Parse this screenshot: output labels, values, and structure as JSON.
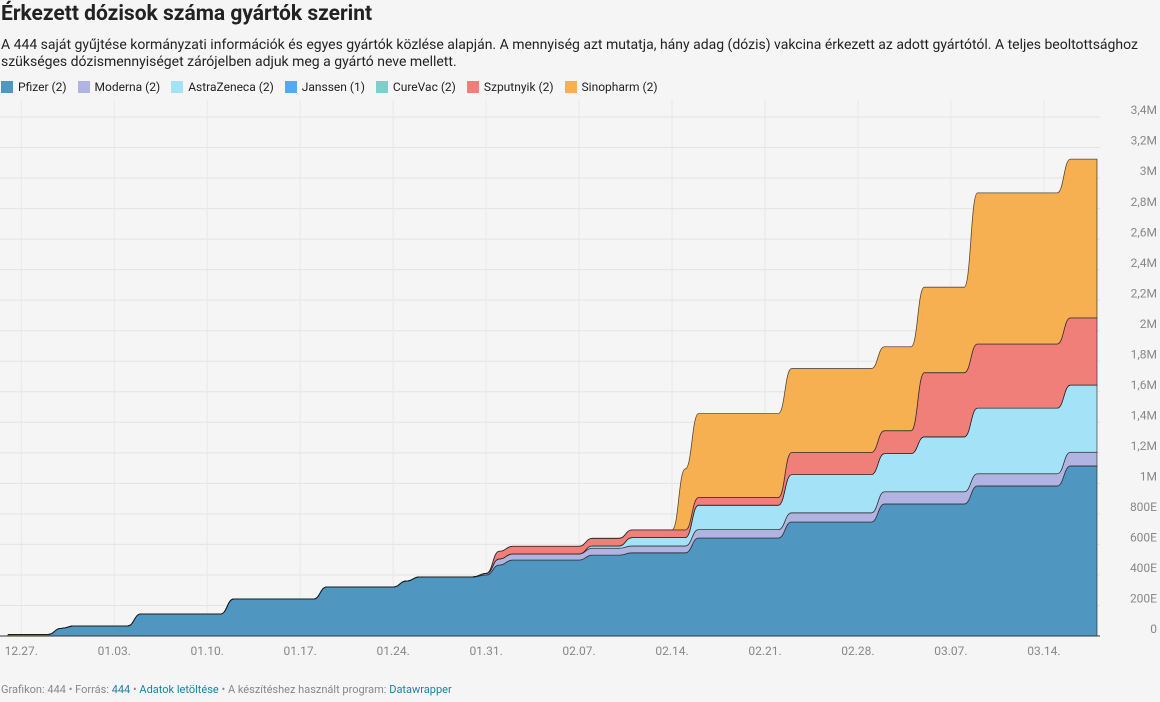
{
  "chart_data": {
    "type": "stacked-area",
    "title": "Érkezett dózisok száma gyártók szerint",
    "subtitle": "A 444 saját gyűjtése kormányzati információk és egyes gyártók közlése alapján. A mennyiség azt mutatja, hány adag (dózis) vakcina érkezett az adott gyártótól. A teljes beoltottsághoz szükséges dózismennyiséget zárójelben adjuk meg a gyártó neve mellett.",
    "categories": [
      null,
      "12.27.",
      null,
      null,
      null,
      null,
      null,
      null,
      "01.03.",
      null,
      null,
      null,
      null,
      null,
      null,
      "01.10.",
      null,
      null,
      null,
      null,
      null,
      null,
      "01.17.",
      null,
      null,
      null,
      null,
      null,
      null,
      "01.24.",
      null,
      null,
      null,
      null,
      null,
      null,
      "01.31.",
      null,
      null,
      null,
      null,
      null,
      null,
      "02.07.",
      null,
      null,
      null,
      null,
      null,
      null,
      "02.14.",
      null,
      null,
      null,
      null,
      null,
      null,
      "02.21.",
      null,
      null,
      null,
      null,
      null,
      null,
      "02.28.",
      null,
      null,
      null,
      null,
      null,
      null,
      "03.07.",
      null,
      null,
      null,
      null,
      null,
      null,
      "03.14.",
      null,
      null,
      null,
      null
    ],
    "series": [
      {
        "name": "Pfizer (2)",
        "color": "#4f97c1",
        "values": [
          10000,
          10000,
          10000,
          10000,
          50000,
          66000,
          66000,
          66000,
          66000,
          66000,
          144000,
          144000,
          144000,
          144000,
          144000,
          144000,
          144000,
          242000,
          242000,
          242000,
          242000,
          242000,
          242000,
          242000,
          321000,
          321000,
          321000,
          321000,
          321000,
          321000,
          360000,
          387000,
          387000,
          387000,
          387000,
          387000,
          400000,
          465000,
          498000,
          498000,
          498000,
          498000,
          498000,
          498000,
          530000,
          530000,
          530000,
          545000,
          545000,
          545000,
          545000,
          545000,
          642000,
          642000,
          642000,
          642000,
          642000,
          642000,
          642000,
          747000,
          747000,
          747000,
          747000,
          747000,
          747000,
          747000,
          865000,
          865000,
          865000,
          865000,
          865000,
          865000,
          865000,
          983000,
          983000,
          983000,
          983000,
          983000,
          983000,
          983000,
          1114000,
          1114000,
          1114000
        ]
      },
      {
        "name": "Moderna (2)",
        "color": "#b1b4e0",
        "values": [
          0,
          0,
          0,
          0,
          0,
          0,
          0,
          0,
          0,
          0,
          0,
          0,
          0,
          0,
          0,
          0,
          0,
          0,
          0,
          0,
          0,
          0,
          0,
          0,
          0,
          0,
          0,
          0,
          0,
          0,
          0,
          0,
          0,
          0,
          0,
          0,
          10000,
          40000,
          40000,
          40000,
          40000,
          40000,
          40000,
          40000,
          45000,
          45000,
          45000,
          45000,
          45000,
          45000,
          45000,
          45000,
          55000,
          55000,
          55000,
          55000,
          55000,
          55000,
          55000,
          60000,
          60000,
          60000,
          60000,
          60000,
          60000,
          60000,
          80000,
          80000,
          80000,
          80000,
          80000,
          80000,
          80000,
          80000,
          80000,
          80000,
          80000,
          80000,
          80000,
          80000,
          90000,
          90000,
          90000
        ]
      },
      {
        "name": "AstraZeneca (2)",
        "color": "#a4e2f8",
        "values": [
          0,
          0,
          0,
          0,
          0,
          0,
          0,
          0,
          0,
          0,
          0,
          0,
          0,
          0,
          0,
          0,
          0,
          0,
          0,
          0,
          0,
          0,
          0,
          0,
          0,
          0,
          0,
          0,
          0,
          0,
          0,
          0,
          0,
          0,
          0,
          0,
          0,
          0,
          0,
          0,
          0,
          0,
          0,
          0,
          15000,
          15000,
          15000,
          55000,
          55000,
          55000,
          55000,
          55000,
          160000,
          160000,
          160000,
          160000,
          160000,
          160000,
          160000,
          250000,
          250000,
          250000,
          250000,
          250000,
          250000,
          250000,
          250000,
          250000,
          250000,
          360000,
          360000,
          360000,
          360000,
          430000,
          430000,
          430000,
          430000,
          430000,
          430000,
          430000,
          440000,
          440000,
          440000
        ]
      },
      {
        "name": "Janssen (1)",
        "color": "#55a8f2",
        "values": [
          0,
          0,
          0,
          0,
          0,
          0,
          0,
          0,
          0,
          0,
          0,
          0,
          0,
          0,
          0,
          0,
          0,
          0,
          0,
          0,
          0,
          0,
          0,
          0,
          0,
          0,
          0,
          0,
          0,
          0,
          0,
          0,
          0,
          0,
          0,
          0,
          0,
          0,
          0,
          0,
          0,
          0,
          0,
          0,
          0,
          0,
          0,
          0,
          0,
          0,
          0,
          0,
          0,
          0,
          0,
          0,
          0,
          0,
          0,
          0,
          0,
          0,
          0,
          0,
          0,
          0,
          0,
          0,
          0,
          0,
          0,
          0,
          0,
          0,
          0,
          0,
          0,
          0,
          0,
          0,
          0,
          0,
          0
        ]
      },
      {
        "name": "CureVac (2)",
        "color": "#7ecfcb",
        "values": [
          0,
          0,
          0,
          0,
          0,
          0,
          0,
          0,
          0,
          0,
          0,
          0,
          0,
          0,
          0,
          0,
          0,
          0,
          0,
          0,
          0,
          0,
          0,
          0,
          0,
          0,
          0,
          0,
          0,
          0,
          0,
          0,
          0,
          0,
          0,
          0,
          0,
          0,
          0,
          0,
          0,
          0,
          0,
          0,
          0,
          0,
          0,
          0,
          0,
          0,
          0,
          0,
          0,
          0,
          0,
          0,
          0,
          0,
          0,
          0,
          0,
          0,
          0,
          0,
          0,
          0,
          0,
          0,
          0,
          0,
          0,
          0,
          0,
          0,
          0,
          0,
          0,
          0,
          0,
          0,
          0,
          0,
          0
        ]
      },
      {
        "name": "Szputnyik (2)",
        "color": "#f07f79",
        "values": [
          0,
          0,
          0,
          0,
          0,
          0,
          0,
          0,
          0,
          0,
          0,
          0,
          0,
          0,
          0,
          0,
          0,
          0,
          0,
          0,
          0,
          0,
          0,
          0,
          0,
          0,
          0,
          0,
          0,
          0,
          0,
          0,
          0,
          0,
          0,
          0,
          0,
          50000,
          50000,
          50000,
          50000,
          50000,
          50000,
          50000,
          50000,
          50000,
          50000,
          50000,
          50000,
          50000,
          50000,
          50000,
          50000,
          50000,
          50000,
          50000,
          50000,
          50000,
          50000,
          145000,
          145000,
          145000,
          145000,
          145000,
          145000,
          145000,
          150000,
          150000,
          150000,
          420000,
          420000,
          420000,
          420000,
          420000,
          420000,
          420000,
          420000,
          420000,
          420000,
          420000,
          440000,
          440000,
          440000
        ]
      },
      {
        "name": "Sinopharm (2)",
        "color": "#f6af51",
        "values": [
          0,
          0,
          0,
          0,
          0,
          0,
          0,
          0,
          0,
          0,
          0,
          0,
          0,
          0,
          0,
          0,
          0,
          0,
          0,
          0,
          0,
          0,
          0,
          0,
          0,
          0,
          0,
          0,
          0,
          0,
          0,
          0,
          0,
          0,
          0,
          0,
          0,
          0,
          0,
          0,
          0,
          0,
          0,
          0,
          0,
          0,
          0,
          0,
          0,
          0,
          0,
          400000,
          550000,
          550000,
          550000,
          550000,
          550000,
          550000,
          550000,
          550000,
          550000,
          550000,
          550000,
          550000,
          550000,
          550000,
          550000,
          550000,
          550000,
          560000,
          560000,
          560000,
          560000,
          990000,
          990000,
          990000,
          990000,
          990000,
          990000,
          990000,
          1040000,
          1040000,
          1040000
        ]
      }
    ],
    "ylim": [
      0,
      3400000
    ],
    "yticks": [
      0,
      {
        "value": 200000,
        "label": "200E"
      },
      {
        "value": 400000,
        "label": "400E"
      },
      {
        "value": 600000,
        "label": "600E"
      },
      {
        "value": 800000,
        "label": "800E"
      },
      {
        "value": 1000000,
        "label": "1M"
      },
      {
        "value": 1200000,
        "label": "1,2M"
      },
      {
        "value": 1400000,
        "label": "1,4M"
      },
      {
        "value": 1600000,
        "label": "1,6M"
      },
      {
        "value": 1800000,
        "label": "1,8M"
      },
      {
        "value": 2000000,
        "label": "2M"
      },
      {
        "value": 2200000,
        "label": "2,2M"
      },
      {
        "value": 2400000,
        "label": "2,4M"
      },
      {
        "value": 2600000,
        "label": "2,6M"
      },
      {
        "value": 2800000,
        "label": "2,8M"
      },
      {
        "value": 3000000,
        "label": "3M"
      },
      {
        "value": 3200000,
        "label": "3,2M"
      },
      {
        "value": 3400000,
        "label": "3,4M"
      }
    ],
    "grid": true,
    "footer": {
      "credit": "Grafikon: 444",
      "separator": "•",
      "source_label": "Forrás:",
      "source": "444",
      "download": "Adatok letöltése",
      "tool_label": "A készítéshez használt program:",
      "tool": "Datawrapper"
    }
  }
}
